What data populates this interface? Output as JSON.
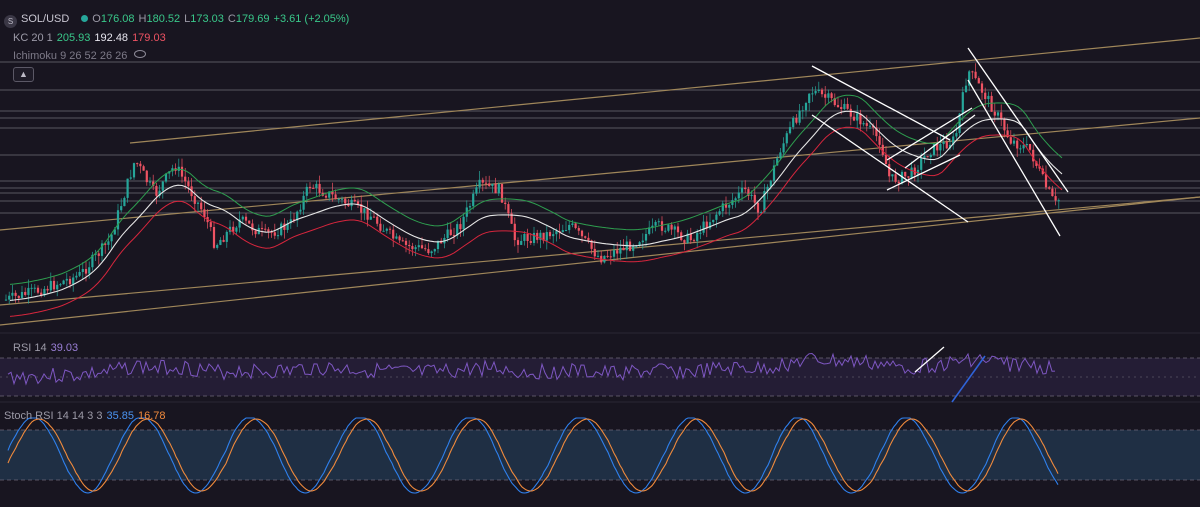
{
  "header": {
    "symbol": "SOL/USD",
    "symbol_icon": "S",
    "open_label": "O",
    "open": "176.08",
    "high_label": "H",
    "high": "180.52",
    "low_label": "L",
    "low": "173.03",
    "close_label": "C",
    "close": "179.69",
    "change": "+3.61 (+2.05%)"
  },
  "indicators": {
    "kc": {
      "label": "KC 20 1",
      "upper": "205.93",
      "middle": "192.48",
      "lower": "179.03"
    },
    "ichimoku": {
      "label": "Ichimoku 9 26 52 26 26"
    },
    "collapse_icon": "chevron-up-icon",
    "rsi": {
      "label": "RSI 14",
      "value": "39.03"
    },
    "stoch": {
      "label": "Stoch RSI 14 14 3 3",
      "k": "35.85",
      "d": "16.78"
    }
  },
  "colors": {
    "background": "#181520",
    "candle_up": "#26a69a",
    "candle_down": "#ef5363",
    "kc_upper": "#2e9e4f",
    "kc_middle": "#e6e6e6",
    "kc_lower": "#d7263d",
    "trend_channel": "#a0875a",
    "horizontal_levels": "#7f7d86",
    "drawings_white": "#ffffff",
    "rsi_line": "#7e57c2",
    "stoch_k": "#2f80ed",
    "stoch_d": "#f08a3c",
    "stoch_band": "#1f2f44"
  }
}
